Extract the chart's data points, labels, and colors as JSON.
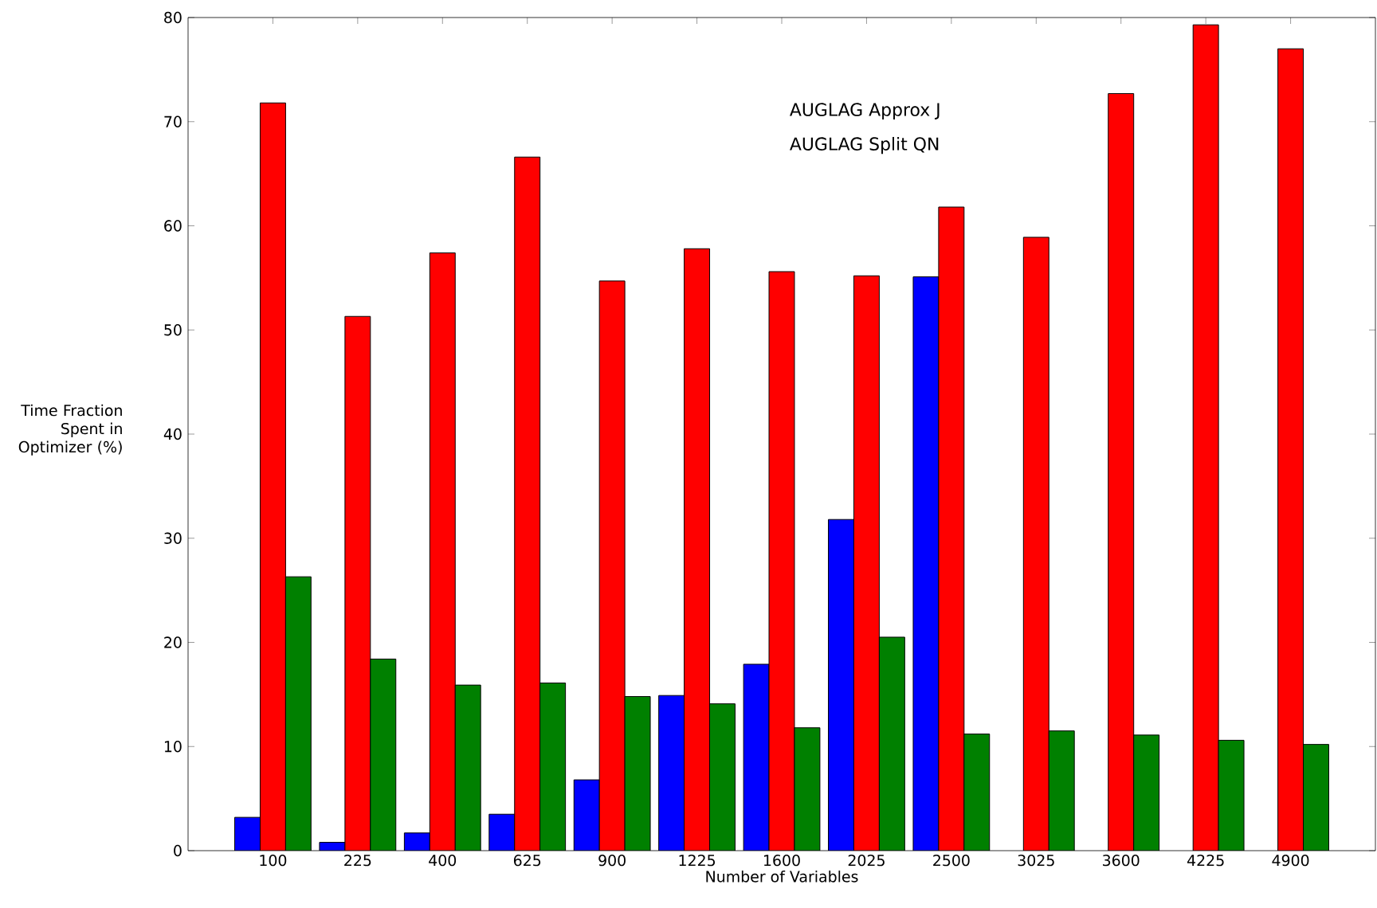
{
  "chart_data": {
    "type": "bar",
    "xlabel": "Number of Variables",
    "ylabel": "Time Fraction Spent in Optimizer (%)",
    "categories": [
      "100",
      "225",
      "400",
      "625",
      "900",
      "1225",
      "1600",
      "2025",
      "2500",
      "3025",
      "3600",
      "4225",
      "4900"
    ],
    "series": [
      {
        "color": "#0000ff",
        "values": [
          3.2,
          0.8,
          1.7,
          3.5,
          6.8,
          14.9,
          17.9,
          31.8,
          55.1,
          null,
          null,
          null,
          null
        ]
      },
      {
        "color": "#ff0000",
        "values": [
          71.8,
          51.3,
          57.4,
          66.6,
          54.7,
          57.8,
          55.6,
          55.2,
          61.8,
          58.9,
          72.7,
          79.3,
          77.0
        ]
      },
      {
        "color": "#008000",
        "values": [
          26.3,
          18.4,
          15.9,
          16.1,
          14.8,
          14.1,
          11.8,
          20.5,
          11.2,
          11.5,
          11.1,
          10.6,
          10.2
        ]
      }
    ],
    "annotations": [
      "AUGLAG Approx J",
      "AUGLAG Split QN"
    ],
    "ylim": [
      0,
      80
    ],
    "yticks": [
      0,
      10,
      20,
      30,
      40,
      50,
      60,
      70,
      80
    ],
    "grid": false
  }
}
